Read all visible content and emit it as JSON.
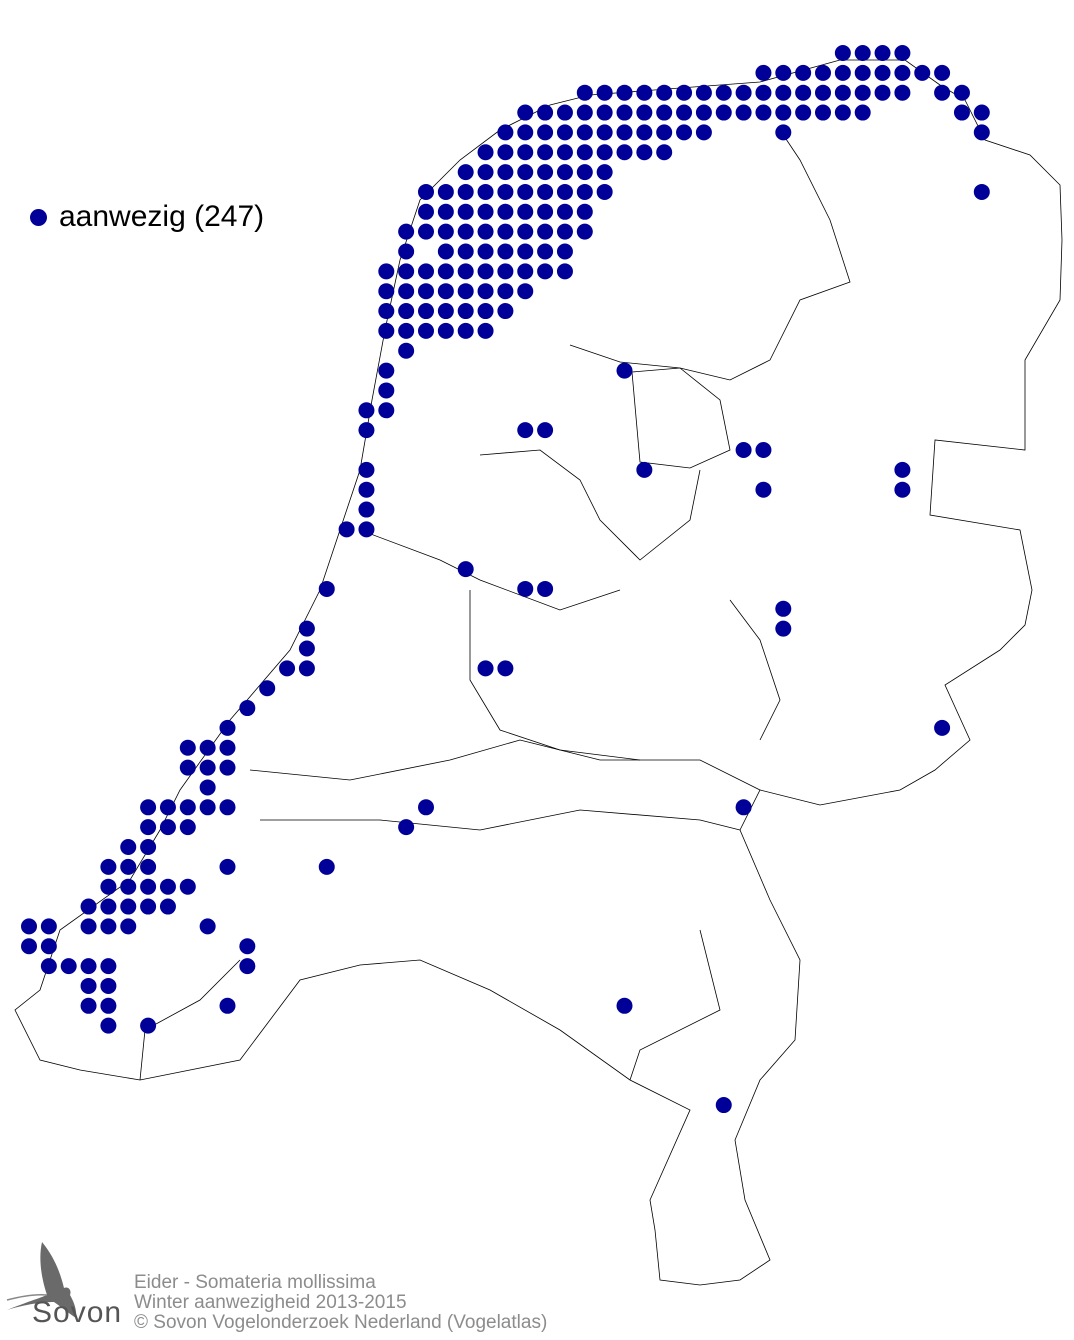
{
  "map": {
    "species": "Eider - Somateria mollissima",
    "subtitle": "Winter aanwezigheid 2013-2015",
    "copyright": "© Sovon Vogelonderzoek Nederland (Vogelatlas)",
    "legend": {
      "label": "aanwezig (247)",
      "count": 247
    },
    "dot_color": "#000099",
    "outline_color": "#000000"
  },
  "logo": {
    "text": "Sovon",
    "icon": "swallow-logo-icon"
  }
}
